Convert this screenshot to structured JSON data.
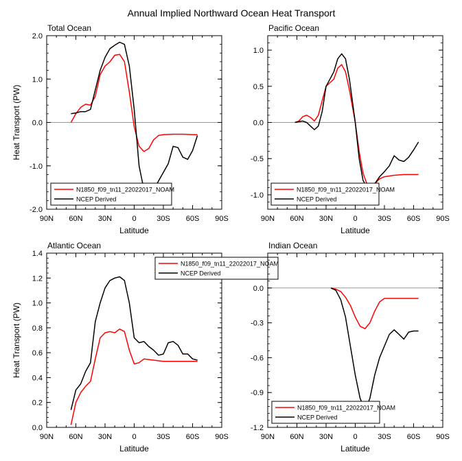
{
  "figure_title": "Annual Implied Northward Ocean Heat Transport",
  "colors": {
    "model": "#ff0000",
    "obs": "#000000",
    "zero_line": "#999999"
  },
  "chart_data": [
    {
      "type": "line",
      "title": "Total Ocean",
      "xlabel": "Latitude",
      "ylabel": "Heat Transport (PW)",
      "xlim": [
        90,
        -90
      ],
      "x_ticks": [
        90,
        60,
        30,
        0,
        -30,
        -60,
        -90
      ],
      "x_tick_labels": [
        "90N",
        "60N",
        "30N",
        "0",
        "30S",
        "60S",
        "90S"
      ],
      "ylim": [
        -2.0,
        2.0
      ],
      "y_ticks": [
        -2.0,
        -1.0,
        0.0,
        1.0,
        2.0
      ],
      "y_tick_labels": [
        "-2.0",
        "-1.0",
        "0.0",
        "1.0",
        "2.0"
      ],
      "zero_line": true,
      "legend": {
        "placement": "bottom-left"
      },
      "series": [
        {
          "name": "N1850_f09_tn11_22022017_NOAM",
          "color": "#ff0000",
          "x": [
            65,
            60,
            55,
            50,
            45,
            40,
            35,
            30,
            25,
            20,
            15,
            10,
            5,
            0,
            -5,
            -10,
            -15,
            -20,
            -25,
            -30,
            -40,
            -50,
            -60,
            -65
          ],
          "y": [
            0.0,
            0.2,
            0.35,
            0.42,
            0.4,
            0.6,
            1.1,
            1.3,
            1.4,
            1.55,
            1.57,
            1.4,
            0.7,
            -0.1,
            -0.55,
            -0.67,
            -0.6,
            -0.4,
            -0.3,
            -0.28,
            -0.27,
            -0.27,
            -0.28,
            -0.28
          ]
        },
        {
          "name": "NCEP Derived",
          "color": "#000000",
          "x": [
            65,
            60,
            55,
            50,
            45,
            40,
            35,
            30,
            25,
            20,
            15,
            10,
            5,
            0,
            -5,
            -10,
            -15,
            -20,
            -25,
            -30,
            -35,
            -40,
            -45,
            -50,
            -55,
            -60,
            -65
          ],
          "y": [
            0.2,
            0.22,
            0.25,
            0.25,
            0.3,
            0.75,
            1.2,
            1.5,
            1.7,
            1.78,
            1.85,
            1.8,
            1.3,
            0.3,
            -1.0,
            -1.55,
            -1.68,
            -1.55,
            -1.35,
            -1.15,
            -0.95,
            -0.55,
            -0.58,
            -0.8,
            -0.85,
            -0.65,
            -0.3
          ]
        }
      ]
    },
    {
      "type": "line",
      "title": "Pacific Ocean",
      "xlabel": "Latitude",
      "ylabel": "",
      "xlim": [
        90,
        -90
      ],
      "x_ticks": [
        90,
        60,
        30,
        0,
        -30,
        -60,
        -90
      ],
      "x_tick_labels": [
        "90N",
        "60N",
        "30N",
        "0",
        "30S",
        "60S",
        "90S"
      ],
      "ylim": [
        -1.2,
        1.2
      ],
      "y_ticks": [
        -1.0,
        -0.5,
        0.0,
        0.5,
        1.0
      ],
      "y_tick_labels": [
        "-1.0",
        "-0.5",
        "0.0",
        "0.5",
        "1.0"
      ],
      "zero_line": true,
      "legend": {
        "placement": "bottom-left"
      },
      "series": [
        {
          "name": "N1850_f09_tn11_22022017_NOAM",
          "color": "#ff0000",
          "x": [
            62,
            58,
            54,
            50,
            46,
            42,
            38,
            34,
            30,
            26,
            22,
            18,
            14,
            10,
            6,
            2,
            0,
            -4,
            -8,
            -12,
            -16,
            -20,
            -25,
            -30,
            -40,
            -50,
            -60,
            -65
          ],
          "y": [
            0.0,
            0.02,
            0.08,
            0.1,
            0.07,
            0.02,
            0.1,
            0.3,
            0.5,
            0.55,
            0.6,
            0.75,
            0.8,
            0.7,
            0.45,
            0.15,
            0.0,
            -0.4,
            -0.7,
            -0.85,
            -0.88,
            -0.85,
            -0.78,
            -0.75,
            -0.73,
            -0.72,
            -0.72,
            -0.72
          ]
        },
        {
          "name": "NCEP Derived",
          "color": "#000000",
          "x": [
            62,
            58,
            54,
            50,
            46,
            42,
            38,
            34,
            30,
            26,
            22,
            18,
            14,
            10,
            6,
            2,
            0,
            -4,
            -8,
            -12,
            -16,
            -20,
            -25,
            -30,
            -35,
            -40,
            -45,
            -50,
            -55,
            -60,
            -65
          ],
          "y": [
            0.0,
            0.01,
            0.02,
            0.0,
            -0.05,
            -0.1,
            -0.05,
            0.15,
            0.5,
            0.6,
            0.7,
            0.88,
            0.95,
            0.88,
            0.6,
            0.2,
            0.0,
            -0.5,
            -0.8,
            -0.9,
            -0.9,
            -0.85,
            -0.75,
            -0.68,
            -0.6,
            -0.46,
            -0.52,
            -0.54,
            -0.48,
            -0.38,
            -0.27
          ]
        }
      ]
    },
    {
      "type": "line",
      "title": "Atlantic Ocean",
      "xlabel": "Latitude",
      "ylabel": "Heat Transport (PW)",
      "xlim": [
        90,
        -90
      ],
      "x_ticks": [
        90,
        60,
        30,
        0,
        -30,
        -60,
        -90
      ],
      "x_tick_labels": [
        "90N",
        "60N",
        "30N",
        "0",
        "30S",
        "60S",
        "90S"
      ],
      "ylim": [
        0.0,
        1.4
      ],
      "y_ticks": [
        0.0,
        0.2,
        0.4,
        0.6,
        0.8,
        1.0,
        1.2,
        1.4
      ],
      "y_tick_labels": [
        "0.0",
        "0.2",
        "0.4",
        "0.6",
        "0.8",
        "1.0",
        "1.2",
        "1.4"
      ],
      "zero_line": false,
      "legend": {
        "placement": "top-right"
      },
      "series": [
        {
          "name": "N1850_f09_tn11_22022017_NOAM",
          "color": "#ff0000",
          "x": [
            65,
            60,
            55,
            50,
            45,
            40,
            35,
            30,
            25,
            20,
            15,
            10,
            5,
            0,
            -5,
            -10,
            -20,
            -30,
            -40,
            -50,
            -60,
            -65
          ],
          "y": [
            0.02,
            0.2,
            0.28,
            0.33,
            0.37,
            0.55,
            0.72,
            0.76,
            0.77,
            0.76,
            0.79,
            0.77,
            0.62,
            0.51,
            0.52,
            0.55,
            0.54,
            0.53,
            0.53,
            0.53,
            0.53,
            0.53
          ]
        },
        {
          "name": "NCEP Derived",
          "color": "#000000",
          "x": [
            65,
            60,
            55,
            50,
            45,
            40,
            35,
            30,
            25,
            20,
            15,
            10,
            5,
            0,
            -5,
            -10,
            -15,
            -20,
            -25,
            -30,
            -35,
            -40,
            -45,
            -50,
            -55,
            -60,
            -65
          ],
          "y": [
            0.14,
            0.3,
            0.35,
            0.45,
            0.52,
            0.85,
            1.0,
            1.12,
            1.18,
            1.2,
            1.21,
            1.18,
            1.0,
            0.72,
            0.68,
            0.69,
            0.65,
            0.62,
            0.58,
            0.59,
            0.68,
            0.69,
            0.66,
            0.59,
            0.59,
            0.55,
            0.54
          ]
        }
      ]
    },
    {
      "type": "line",
      "title": "Indian Ocean",
      "xlabel": "Latitude",
      "ylabel": "",
      "xlim": [
        90,
        -90
      ],
      "x_ticks": [
        90,
        60,
        30,
        0,
        -30,
        -60,
        -90
      ],
      "x_tick_labels": [
        "90N",
        "60N",
        "30N",
        "0",
        "30S",
        "60S",
        "90S"
      ],
      "ylim": [
        -1.2,
        0.3
      ],
      "y_ticks": [
        -1.2,
        -0.9,
        -0.6,
        -0.3,
        0.0
      ],
      "y_tick_labels": [
        "-1.2",
        "-0.9",
        "-0.6",
        "-0.3",
        "0.0"
      ],
      "zero_line": true,
      "legend": {
        "placement": "bottom-left"
      },
      "series": [
        {
          "name": "N1850_f09_tn11_22022017_NOAM",
          "color": "#ff0000",
          "x": [
            25,
            20,
            15,
            10,
            5,
            0,
            -5,
            -10,
            -15,
            -20,
            -25,
            -30,
            -35,
            -40,
            -50,
            -60,
            -65
          ],
          "y": [
            0.0,
            -0.01,
            -0.03,
            -0.08,
            -0.15,
            -0.25,
            -0.33,
            -0.35,
            -0.3,
            -0.2,
            -0.12,
            -0.09,
            -0.09,
            -0.09,
            -0.09,
            -0.09,
            -0.09
          ]
        },
        {
          "name": "NCEP Derived",
          "color": "#000000",
          "x": [
            25,
            20,
            15,
            10,
            5,
            0,
            -5,
            -10,
            -15,
            -20,
            -25,
            -30,
            -35,
            -40,
            -45,
            -50,
            -55,
            -60,
            -65
          ],
          "y": [
            0.0,
            -0.02,
            -0.1,
            -0.25,
            -0.5,
            -0.75,
            -0.95,
            -1.05,
            -0.95,
            -0.75,
            -0.6,
            -0.5,
            -0.4,
            -0.36,
            -0.4,
            -0.44,
            -0.38,
            -0.37,
            -0.37
          ]
        }
      ]
    }
  ]
}
